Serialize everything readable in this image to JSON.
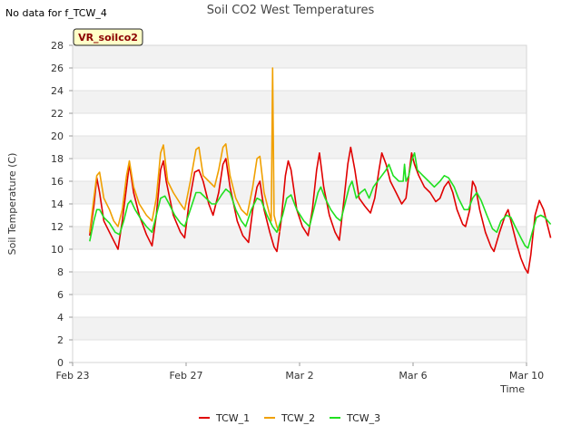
{
  "status_text": "No data for f_TCW_4",
  "site_label": "VR_soilco2",
  "chart_data": {
    "type": "line",
    "title": "Soil CO2 West Temperatures",
    "xlabel": "Time",
    "ylabel": "Soil Temperature (C)",
    "ylim": [
      0,
      28
    ],
    "yticks": [
      0,
      2,
      4,
      6,
      8,
      10,
      12,
      14,
      16,
      18,
      20,
      22,
      24,
      26,
      28
    ],
    "xlim": [
      0,
      15
    ],
    "xticks": [
      {
        "value": 0,
        "label": "Feb 23"
      },
      {
        "value": 4,
        "label": "Feb 27"
      },
      {
        "value": 8,
        "label": "Mar 2"
      },
      {
        "value": 12,
        "label": "Mar 6"
      },
      {
        "value": 16,
        "label": "Mar 10"
      }
    ],
    "grid": true,
    "legend_position": "bottom",
    "series": [
      {
        "name": "TCW_1",
        "color": "#e00000",
        "points": [
          [
            0.6,
            11.2
          ],
          [
            0.75,
            13.8
          ],
          [
            0.85,
            16.3
          ],
          [
            0.95,
            15.0
          ],
          [
            1.1,
            12.5
          ],
          [
            1.3,
            11.5
          ],
          [
            1.5,
            10.5
          ],
          [
            1.6,
            10.0
          ],
          [
            1.75,
            12.5
          ],
          [
            1.9,
            15.5
          ],
          [
            2.0,
            17.5
          ],
          [
            2.15,
            15.0
          ],
          [
            2.35,
            13.0
          ],
          [
            2.6,
            11.3
          ],
          [
            2.8,
            10.3
          ],
          [
            2.95,
            13.0
          ],
          [
            3.1,
            17.0
          ],
          [
            3.2,
            17.8
          ],
          [
            3.3,
            16.0
          ],
          [
            3.55,
            13.0
          ],
          [
            3.8,
            11.5
          ],
          [
            3.95,
            11.0
          ],
          [
            4.1,
            14.0
          ],
          [
            4.3,
            16.8
          ],
          [
            4.45,
            17.0
          ],
          [
            4.6,
            16.0
          ],
          [
            4.8,
            14.0
          ],
          [
            4.95,
            13.0
          ],
          [
            5.15,
            15.0
          ],
          [
            5.3,
            17.5
          ],
          [
            5.4,
            18.0
          ],
          [
            5.55,
            15.5
          ],
          [
            5.8,
            12.5
          ],
          [
            6.0,
            11.2
          ],
          [
            6.2,
            10.6
          ],
          [
            6.35,
            13.5
          ],
          [
            6.5,
            15.5
          ],
          [
            6.6,
            16.0
          ],
          [
            6.75,
            13.5
          ],
          [
            6.95,
            11.5
          ],
          [
            7.1,
            10.2
          ],
          [
            7.2,
            9.8
          ],
          [
            7.35,
            12.5
          ],
          [
            7.5,
            16.5
          ],
          [
            7.6,
            17.8
          ],
          [
            7.7,
            17.0
          ],
          [
            7.9,
            13.5
          ],
          [
            8.1,
            12.0
          ],
          [
            8.3,
            11.2
          ],
          [
            8.45,
            13.5
          ],
          [
            8.6,
            17.0
          ],
          [
            8.7,
            18.5
          ],
          [
            8.85,
            15.5
          ],
          [
            9.05,
            13.0
          ],
          [
            9.25,
            11.5
          ],
          [
            9.4,
            10.8
          ],
          [
            9.55,
            14.0
          ],
          [
            9.7,
            17.5
          ],
          [
            9.8,
            19.0
          ],
          [
            9.95,
            17.0
          ],
          [
            10.1,
            14.5
          ],
          [
            10.3,
            13.8
          ],
          [
            10.5,
            13.2
          ],
          [
            10.65,
            14.5
          ],
          [
            10.8,
            17.0
          ],
          [
            10.9,
            18.5
          ],
          [
            11.05,
            17.5
          ],
          [
            11.2,
            16.0
          ],
          [
            11.4,
            15.0
          ],
          [
            11.6,
            14.0
          ],
          [
            11.75,
            14.5
          ],
          [
            11.85,
            16.5
          ],
          [
            11.95,
            18.5
          ],
          [
            12.05,
            17.5
          ],
          [
            12.2,
            16.5
          ],
          [
            12.4,
            15.5
          ],
          [
            12.6,
            15.0
          ],
          [
            12.8,
            14.2
          ],
          [
            12.95,
            14.5
          ],
          [
            13.1,
            15.5
          ],
          [
            13.25,
            16.0
          ],
          [
            13.4,
            15.0
          ],
          [
            13.55,
            13.5
          ],
          [
            13.75,
            12.2
          ],
          [
            13.85,
            12.0
          ],
          [
            14.0,
            13.5
          ],
          [
            14.1,
            16.0
          ],
          [
            14.2,
            15.5
          ],
          [
            14.35,
            13.5
          ],
          [
            14.55,
            11.5
          ],
          [
            14.75,
            10.2
          ],
          [
            14.85,
            9.8
          ],
          [
            15.05,
            11.5
          ],
          [
            15.25,
            13.0
          ],
          [
            15.35,
            13.5
          ],
          [
            15.5,
            12.0
          ],
          [
            15.65,
            10.5
          ],
          [
            15.8,
            9.2
          ],
          [
            15.95,
            8.3
          ],
          [
            16.05,
            7.9
          ],
          [
            16.15,
            9.5
          ],
          [
            16.3,
            13.0
          ],
          [
            16.45,
            14.3
          ],
          [
            16.6,
            13.5
          ],
          [
            16.7,
            12.5
          ],
          [
            16.85,
            11.0
          ]
        ]
      },
      {
        "name": "TCW_2",
        "color": "#f0a000",
        "points": [
          [
            0.6,
            11.5
          ],
          [
            0.75,
            14.5
          ],
          [
            0.85,
            16.5
          ],
          [
            0.95,
            16.8
          ],
          [
            1.1,
            14.5
          ],
          [
            1.3,
            13.5
          ],
          [
            1.45,
            12.5
          ],
          [
            1.6,
            12.0
          ],
          [
            1.75,
            13.5
          ],
          [
            1.9,
            16.5
          ],
          [
            2.0,
            17.8
          ],
          [
            2.15,
            15.5
          ],
          [
            2.35,
            14.0
          ],
          [
            2.6,
            13.0
          ],
          [
            2.8,
            12.5
          ],
          [
            2.95,
            14.5
          ],
          [
            3.1,
            18.5
          ],
          [
            3.2,
            19.2
          ],
          [
            3.35,
            16.0
          ],
          [
            3.55,
            15.0
          ],
          [
            3.8,
            14.0
          ],
          [
            3.95,
            13.5
          ],
          [
            4.15,
            16.0
          ],
          [
            4.35,
            18.8
          ],
          [
            4.45,
            19.0
          ],
          [
            4.6,
            16.5
          ],
          [
            4.8,
            16.0
          ],
          [
            5.0,
            15.5
          ],
          [
            5.15,
            17.0
          ],
          [
            5.3,
            19.0
          ],
          [
            5.4,
            19.3
          ],
          [
            5.55,
            16.5
          ],
          [
            5.75,
            14.5
          ],
          [
            5.95,
            13.5
          ],
          [
            6.15,
            13.0
          ],
          [
            6.35,
            15.5
          ],
          [
            6.5,
            18.0
          ],
          [
            6.6,
            18.2
          ],
          [
            6.75,
            15.0
          ],
          [
            6.95,
            13.0
          ],
          [
            7.0,
            12.5
          ],
          [
            7.05,
            26.0
          ],
          [
            7.1,
            13.0
          ],
          [
            7.2,
            12.0
          ],
          [
            7.3,
            11.5
          ]
        ]
      },
      {
        "name": "TCW_3",
        "color": "#20e020",
        "points": [
          [
            0.6,
            10.7
          ],
          [
            0.75,
            12.5
          ],
          [
            0.85,
            13.5
          ],
          [
            0.95,
            13.5
          ],
          [
            1.1,
            12.8
          ],
          [
            1.3,
            12.3
          ],
          [
            1.5,
            11.5
          ],
          [
            1.65,
            11.3
          ],
          [
            1.8,
            12.5
          ],
          [
            1.95,
            14.0
          ],
          [
            2.05,
            14.3
          ],
          [
            2.2,
            13.5
          ],
          [
            2.4,
            12.7
          ],
          [
            2.6,
            12.0
          ],
          [
            2.8,
            11.5
          ],
          [
            2.95,
            13.0
          ],
          [
            3.1,
            14.5
          ],
          [
            3.25,
            14.7
          ],
          [
            3.4,
            14.0
          ],
          [
            3.6,
            13.0
          ],
          [
            3.8,
            12.3
          ],
          [
            3.95,
            12.0
          ],
          [
            4.15,
            13.5
          ],
          [
            4.35,
            15.0
          ],
          [
            4.5,
            15.0
          ],
          [
            4.7,
            14.5
          ],
          [
            4.9,
            14.0
          ],
          [
            5.05,
            14.0
          ],
          [
            5.25,
            14.8
          ],
          [
            5.4,
            15.3
          ],
          [
            5.55,
            15.0
          ],
          [
            5.75,
            13.5
          ],
          [
            5.95,
            12.5
          ],
          [
            6.1,
            12.0
          ],
          [
            6.3,
            13.5
          ],
          [
            6.5,
            14.5
          ],
          [
            6.65,
            14.3
          ],
          [
            6.85,
            13.0
          ],
          [
            7.05,
            12.0
          ],
          [
            7.2,
            11.5
          ],
          [
            7.4,
            13.0
          ],
          [
            7.55,
            14.5
          ],
          [
            7.7,
            14.8
          ],
          [
            7.9,
            13.5
          ],
          [
            8.15,
            12.5
          ],
          [
            8.35,
            12.0
          ],
          [
            8.5,
            13.5
          ],
          [
            8.65,
            15.0
          ],
          [
            8.75,
            15.5
          ],
          [
            8.9,
            14.5
          ],
          [
            9.1,
            13.5
          ],
          [
            9.3,
            12.8
          ],
          [
            9.45,
            12.5
          ],
          [
            9.6,
            14.0
          ],
          [
            9.75,
            15.5
          ],
          [
            9.85,
            16.0
          ],
          [
            10.0,
            14.5
          ],
          [
            10.15,
            15.0
          ],
          [
            10.3,
            15.3
          ],
          [
            10.45,
            14.5
          ],
          [
            10.6,
            15.5
          ],
          [
            10.75,
            16.0
          ],
          [
            10.9,
            16.5
          ],
          [
            11.05,
            17.0
          ],
          [
            11.15,
            17.5
          ],
          [
            11.3,
            16.5
          ],
          [
            11.5,
            16.0
          ],
          [
            11.65,
            16.0
          ],
          [
            11.7,
            17.5
          ],
          [
            11.75,
            16.0
          ],
          [
            11.85,
            16.5
          ],
          [
            11.95,
            17.8
          ],
          [
            12.05,
            18.5
          ],
          [
            12.15,
            17.0
          ],
          [
            12.35,
            16.5
          ],
          [
            12.55,
            16.0
          ],
          [
            12.75,
            15.5
          ],
          [
            12.95,
            16.0
          ],
          [
            13.1,
            16.5
          ],
          [
            13.25,
            16.3
          ],
          [
            13.45,
            15.5
          ],
          [
            13.6,
            14.5
          ],
          [
            13.8,
            13.5
          ],
          [
            13.95,
            13.5
          ],
          [
            14.1,
            14.5
          ],
          [
            14.25,
            15.0
          ],
          [
            14.4,
            14.3
          ],
          [
            14.6,
            13.0
          ],
          [
            14.8,
            11.8
          ],
          [
            14.95,
            11.5
          ],
          [
            15.1,
            12.5
          ],
          [
            15.3,
            13.0
          ],
          [
            15.45,
            12.8
          ],
          [
            15.6,
            12.0
          ],
          [
            15.8,
            11.0
          ],
          [
            15.95,
            10.3
          ],
          [
            16.05,
            10.1
          ],
          [
            16.2,
            11.5
          ],
          [
            16.35,
            12.8
          ],
          [
            16.5,
            13.0
          ],
          [
            16.65,
            12.8
          ],
          [
            16.85,
            12.2
          ]
        ]
      }
    ]
  }
}
